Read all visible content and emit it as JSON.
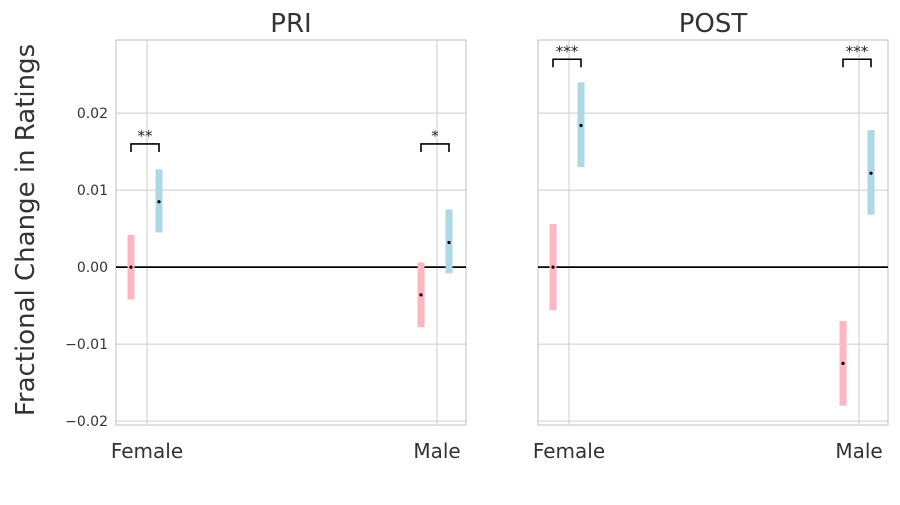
{
  "figure": {
    "ylabel": "Fractional Change in Ratings"
  },
  "colors": {
    "group_a": "#ffb6c1",
    "group_b": "#add8e6",
    "point": "#000000",
    "zero_line": "#000000",
    "grid": "#cccccc",
    "frame": "#cccccc",
    "text": "#333333"
  },
  "chart_data": [
    {
      "type": "errorbar",
      "title": "PRI",
      "categories": [
        "Female",
        "Male"
      ],
      "ylim": [
        -0.0205,
        0.0295
      ],
      "yticks": [
        -0.02,
        -0.01,
        0.0,
        0.01,
        0.02
      ],
      "ytick_labels": [
        "−0.02",
        "−0.01",
        "0.00",
        "0.01",
        "0.02"
      ],
      "show_yticklabels": true,
      "grid": true,
      "zero_line": true,
      "series": [
        {
          "values": [
            0.0,
            -0.0036
          ],
          "lower": [
            -0.0042,
            -0.0078
          ],
          "upper": [
            0.0042,
            0.0006
          ]
        },
        {
          "values": [
            0.0085,
            0.0032
          ],
          "lower": [
            0.0045,
            -0.0008
          ],
          "upper": [
            0.0127,
            0.0075
          ]
        }
      ],
      "significance": [
        {
          "category": "Female",
          "label": "**",
          "y": 0.016
        },
        {
          "category": "Male",
          "label": "*",
          "y": 0.016
        }
      ]
    },
    {
      "type": "errorbar",
      "title": "POST",
      "categories": [
        "Female",
        "Male"
      ],
      "ylim": [
        -0.0205,
        0.0295
      ],
      "yticks": [
        -0.02,
        -0.01,
        0.0,
        0.01,
        0.02
      ],
      "ytick_labels": [
        "−0.02",
        "−0.01",
        "0.00",
        "0.01",
        "0.02"
      ],
      "show_yticklabels": false,
      "grid": true,
      "zero_line": true,
      "series": [
        {
          "values": [
            0.0,
            -0.0125
          ],
          "lower": [
            -0.0056,
            -0.018
          ],
          "upper": [
            0.0056,
            -0.007
          ]
        },
        {
          "values": [
            0.0184,
            0.0122
          ],
          "lower": [
            0.013,
            0.0068
          ],
          "upper": [
            0.024,
            0.0178
          ]
        }
      ],
      "significance": [
        {
          "category": "Female",
          "label": "***",
          "y": 0.027
        },
        {
          "category": "Male",
          "label": "***",
          "y": 0.027
        }
      ]
    }
  ]
}
